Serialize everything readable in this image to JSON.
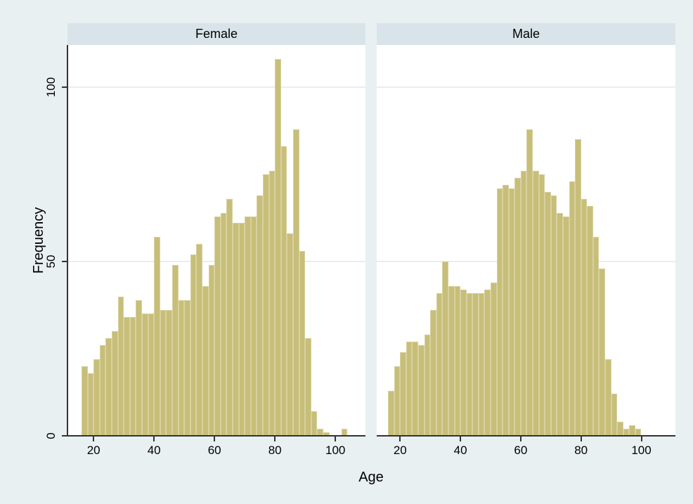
{
  "figure": {
    "background": "#e9f0f2",
    "plot_background": "#ffffff",
    "header_background": "#d9e4ea",
    "bar_fill": "#c7be79",
    "bar_edge": "#d8d19f",
    "grid_color": "#e7eef2",
    "axis_color": "#333333",
    "text_color": "#000000"
  },
  "chart_data": {
    "type": "bar",
    "subtype": "faceted-histogram",
    "title": "",
    "xlabel": "Age",
    "ylabel": "Frequency",
    "grid": "horizontal",
    "legend_position": "none",
    "bin_width_years": 2,
    "first_bin_start_age": 16,
    "x_ticks": [
      20,
      40,
      60,
      80,
      100
    ],
    "y_ticks": [
      0,
      50,
      100
    ],
    "xlim": [
      11,
      110
    ],
    "ylim": [
      0,
      112
    ],
    "panels": [
      {
        "label": "Female",
        "bin_starts_age": [
          16,
          18,
          20,
          22,
          24,
          26,
          28,
          30,
          32,
          34,
          36,
          38,
          40,
          42,
          44,
          46,
          48,
          50,
          52,
          54,
          56,
          58,
          60,
          62,
          64,
          66,
          68,
          70,
          72,
          74,
          76,
          78,
          80,
          82,
          84,
          86,
          88,
          90,
          92,
          94,
          96,
          98,
          100,
          102
        ],
        "values": [
          20,
          18,
          22,
          26,
          28,
          30,
          40,
          34,
          34,
          39,
          35,
          35,
          57,
          36,
          36,
          49,
          39,
          39,
          52,
          55,
          43,
          49,
          63,
          64,
          68,
          61,
          61,
          63,
          63,
          69,
          75,
          76,
          108,
          83,
          58,
          88,
          53,
          28,
          7,
          2,
          1,
          0,
          0,
          2
        ]
      },
      {
        "label": "Male",
        "bin_starts_age": [
          16,
          18,
          20,
          22,
          24,
          26,
          28,
          30,
          32,
          34,
          36,
          38,
          40,
          42,
          44,
          46,
          48,
          50,
          52,
          54,
          56,
          58,
          60,
          62,
          64,
          66,
          68,
          70,
          72,
          74,
          76,
          78,
          80,
          82,
          84,
          86,
          88,
          90,
          92,
          94,
          96,
          98
        ],
        "values": [
          13,
          20,
          24,
          27,
          27,
          26,
          29,
          36,
          41,
          50,
          43,
          43,
          42,
          41,
          41,
          41,
          42,
          44,
          71,
          72,
          71,
          74,
          76,
          88,
          76,
          75,
          70,
          69,
          64,
          63,
          73,
          85,
          68,
          66,
          57,
          48,
          22,
          12,
          4,
          2,
          3,
          2
        ]
      }
    ]
  }
}
